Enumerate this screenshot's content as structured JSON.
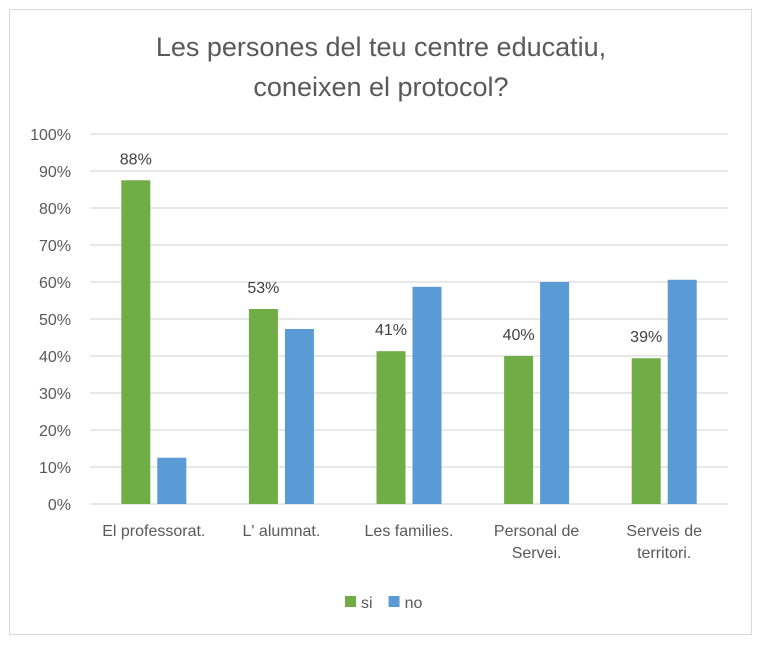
{
  "chart_data": {
    "type": "bar",
    "title": [
      "Les persones del teu centre educatiu,",
      "coneixen el protocol?"
    ],
    "xlabel": "",
    "ylabel": "",
    "ylim": [
      0,
      100
    ],
    "y_ticks": [
      "0%",
      "10%",
      "20%",
      "30%",
      "40%",
      "50%",
      "60%",
      "70%",
      "80%",
      "90%",
      "100%"
    ],
    "grid": true,
    "legend_position": "bottom",
    "categories": [
      [
        "El professorat."
      ],
      [
        "L' alumnat."
      ],
      [
        "Les families."
      ],
      [
        "Personal de",
        "Servei."
      ],
      [
        "Serveis de",
        "territori."
      ]
    ],
    "series": [
      {
        "name": "si",
        "color": "#70ad47",
        "values": [
          87.5,
          52.7,
          41.3,
          40.0,
          39.4
        ],
        "labels": [
          "88%",
          "53%",
          "41%",
          "40%",
          "39%"
        ]
      },
      {
        "name": "no",
        "color": "#5b9bd5",
        "values": [
          12.5,
          47.3,
          58.7,
          60.0,
          60.6
        ],
        "labels": [
          null,
          null,
          null,
          null,
          null
        ]
      }
    ]
  }
}
